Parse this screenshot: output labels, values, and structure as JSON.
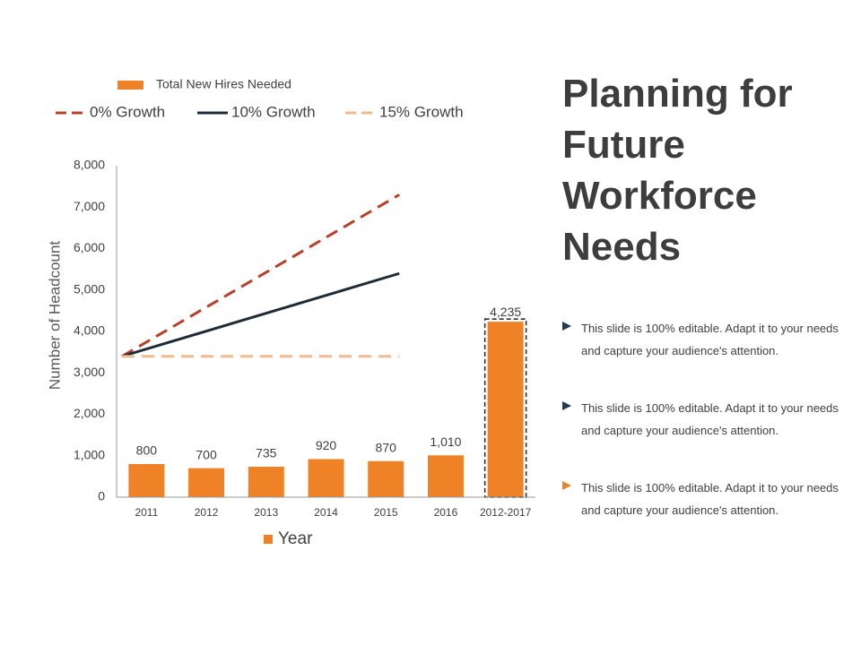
{
  "page": {
    "title_lines": [
      "Planning for",
      "Future",
      "Workforce",
      "Needs"
    ],
    "bullets": [
      {
        "text": "This slide is 100% editable. Adapt it to your needs and capture your audience's attention.",
        "color": "#1f3b57"
      },
      {
        "text": "This slide is 100% editable. Adapt it to your needs and capture your audience's attention.",
        "color": "#1f3b57"
      },
      {
        "text": "This slide is 100% editable. Adapt it to your needs and capture your audience's attention.",
        "color": "#ef8126"
      }
    ]
  },
  "chart_data": {
    "type": "bar",
    "title": "",
    "xlabel": "Year",
    "ylabel": "Number of Headcount",
    "ylim": [
      0,
      8000
    ],
    "yticks": [
      0,
      1000,
      2000,
      3000,
      4000,
      5000,
      6000,
      7000,
      8000
    ],
    "ytick_labels": [
      "0",
      "1,000",
      "2,000",
      "3,000",
      "4,000",
      "5,000",
      "6,000",
      "7,000",
      "8,000"
    ],
    "categories": [
      "2011",
      "2012",
      "2013",
      "2014",
      "2015",
      "2016",
      "2012-2017"
    ],
    "series": [
      {
        "name": "Total New Hires Needed",
        "color": "#ef8126",
        "values": [
          800,
          700,
          735,
          920,
          870,
          1010,
          4235
        ],
        "labels": [
          "800",
          "700",
          "735",
          "920",
          "870",
          "1,010",
          "4,235"
        ],
        "highlight_category": "2012-2017"
      }
    ],
    "lines": [
      {
        "name": "0% Growth",
        "color": "#b5412b",
        "style": "dashed",
        "from_category": "2011",
        "to_category": "2015",
        "start": 3400,
        "end": 7300
      },
      {
        "name": "10% Growth",
        "color": "#1c2b36",
        "style": "solid",
        "from_category": "2011",
        "to_category": "2015",
        "start": 3400,
        "end": 5400
      },
      {
        "name": "15% Growth",
        "color": "#f2bb8e",
        "style": "dashed",
        "from_category": "2011",
        "to_category": "2015",
        "start": 3400,
        "end": 3400
      }
    ],
    "legend": {
      "top_label": "Total New Hires Needed",
      "line_labels": [
        "0% Growth",
        "10% Growth",
        "15% Growth"
      ],
      "bottom_label": "Year",
      "placement": "top-left"
    },
    "grid": false
  }
}
